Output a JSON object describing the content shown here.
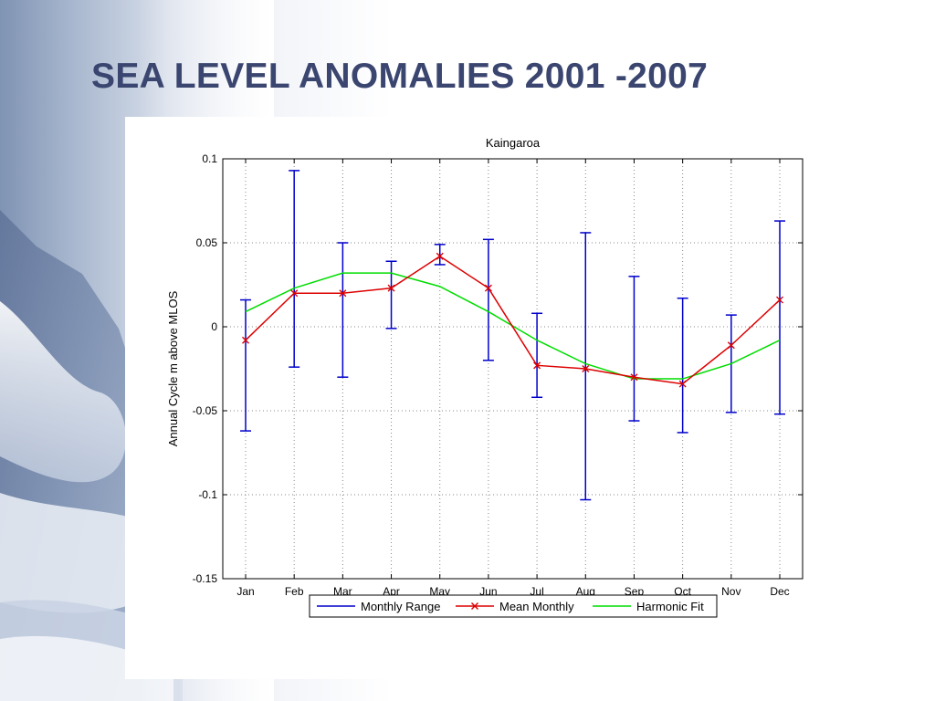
{
  "slide": {
    "title": "SEA LEVEL ANOMALIES 2001 -2007"
  },
  "chart_data": {
    "type": "line",
    "title": "Kaingaroa",
    "xlabel": "",
    "ylabel": "Annual Cycle m above MLOS",
    "categories": [
      "Jan",
      "Feb",
      "Mar",
      "Apr",
      "May",
      "Jun",
      "Jul",
      "Aug",
      "Sep",
      "Oct",
      "Nov",
      "Dec"
    ],
    "ylim": [
      -0.15,
      0.1
    ],
    "yticks": [
      0.1,
      0.05,
      0,
      -0.05,
      -0.1,
      -0.15
    ],
    "ytick_labels": [
      "0.1",
      "0.05",
      "0",
      "-0.05",
      "-0.1",
      "-0.15"
    ],
    "grid": true,
    "legend_position": "bottom",
    "series": [
      {
        "name": "Monthly Range",
        "kind": "errorbar",
        "color": "#0000cc",
        "low": [
          -0.062,
          -0.024,
          -0.03,
          -0.001,
          0.037,
          -0.02,
          -0.042,
          -0.103,
          -0.056,
          -0.063,
          -0.051,
          -0.052
        ],
        "high": [
          0.016,
          0.093,
          0.05,
          0.039,
          0.049,
          0.052,
          0.008,
          0.056,
          0.03,
          0.017,
          0.007,
          0.063
        ]
      },
      {
        "name": "Mean Monthly",
        "kind": "line-marker",
        "color": "#dd0000",
        "values": [
          -0.008,
          0.02,
          0.02,
          0.023,
          0.042,
          0.023,
          -0.023,
          -0.025,
          -0.03,
          -0.034,
          -0.011,
          0.016
        ]
      },
      {
        "name": "Harmonic Fit",
        "kind": "line",
        "color": "#00dd00",
        "values": [
          0.009,
          0.023,
          0.032,
          0.032,
          0.024,
          0.009,
          -0.008,
          -0.022,
          -0.031,
          -0.031,
          -0.022,
          -0.008
        ]
      }
    ]
  }
}
